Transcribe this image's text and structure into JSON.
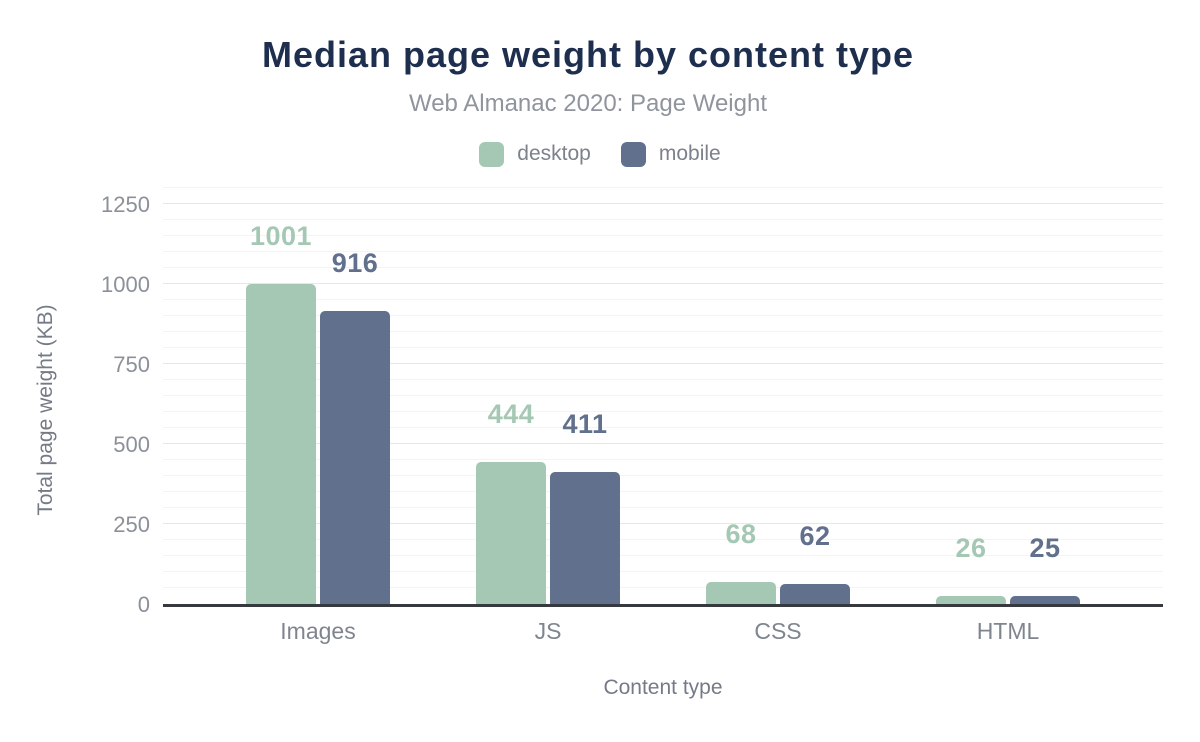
{
  "title": "Median page weight by content type",
  "subtitle": "Web Almanac 2020: Page Weight",
  "legend": [
    {
      "label": "desktop",
      "color": "#a5c8b4"
    },
    {
      "label": "mobile",
      "color": "#60708d"
    }
  ],
  "colors": {
    "title": "#1d2e4e",
    "desktop_series": "#a5c8b4",
    "mobile_series": "#60708d",
    "axis_line": "#36393e",
    "major_grid": "#e7e7e7",
    "minor_grid": "#f4f4f4"
  },
  "chart_data": {
    "type": "bar",
    "categories": [
      "Images",
      "JS",
      "CSS",
      "HTML"
    ],
    "series": [
      {
        "name": "desktop",
        "color": "#a5c8b4",
        "values": [
          1001,
          444,
          68,
          26
        ]
      },
      {
        "name": "mobile",
        "color": "#60708d",
        "values": [
          916,
          411,
          62,
          25
        ]
      }
    ],
    "title": "Median page weight by content type",
    "subtitle": "Web Almanac 2020: Page Weight",
    "xlabel": "Content type",
    "ylabel": "Total page weight (KB)",
    "ylim": [
      0,
      1300
    ],
    "yticks": [
      0,
      250,
      500,
      750,
      1000,
      1250
    ],
    "minor_grid_step": 50,
    "grid": true,
    "legend_position": "top",
    "data_labels": true
  }
}
